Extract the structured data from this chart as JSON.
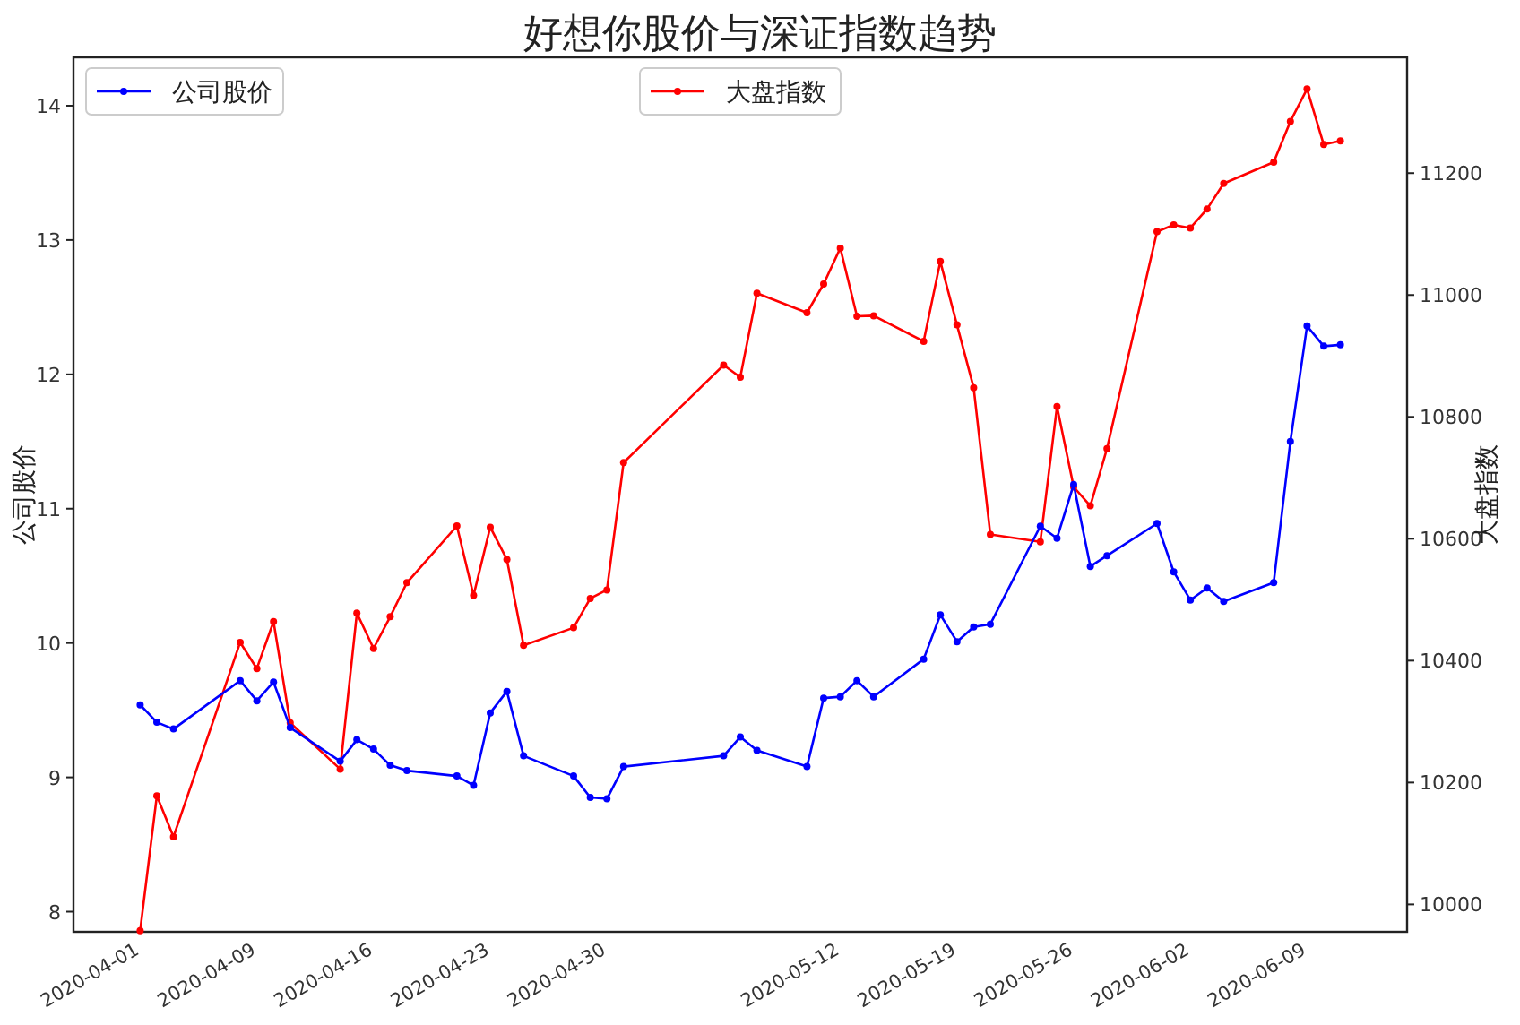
{
  "chart_data": {
    "type": "line",
    "title": "好想你股价与深证指数趋势",
    "ylabel": "公司股价",
    "y2label": "大盘指数",
    "x": [
      "2020-04-01",
      "2020-04-02",
      "2020-04-03",
      "2020-04-07",
      "2020-04-08",
      "2020-04-09",
      "2020-04-10",
      "2020-04-13",
      "2020-04-14",
      "2020-04-15",
      "2020-04-16",
      "2020-04-17",
      "2020-04-20",
      "2020-04-21",
      "2020-04-22",
      "2020-04-23",
      "2020-04-24",
      "2020-04-27",
      "2020-04-28",
      "2020-04-29",
      "2020-04-30",
      "2020-05-06",
      "2020-05-07",
      "2020-05-08",
      "2020-05-11",
      "2020-05-12",
      "2020-05-13",
      "2020-05-14",
      "2020-05-15",
      "2020-05-18",
      "2020-05-19",
      "2020-05-20",
      "2020-05-21",
      "2020-05-22",
      "2020-05-25",
      "2020-05-26",
      "2020-05-27",
      "2020-05-28",
      "2020-05-29",
      "2020-06-01",
      "2020-06-02",
      "2020-06-03",
      "2020-06-04",
      "2020-06-05",
      "2020-06-08",
      "2020-06-09",
      "2020-06-10",
      "2020-06-11",
      "2020-06-12"
    ],
    "series": [
      {
        "name": "公司股价",
        "color": "#0000ff",
        "values": [
          9.54,
          9.41,
          9.36,
          9.72,
          9.57,
          9.71,
          9.37,
          9.12,
          9.28,
          9.21,
          9.09,
          9.05,
          9.01,
          8.94,
          9.48,
          9.64,
          9.16,
          9.01,
          8.85,
          8.84,
          9.08,
          9.16,
          9.3,
          9.2,
          9.08,
          9.59,
          9.6,
          9.72,
          9.6,
          9.88,
          10.21,
          10.01,
          10.12,
          10.14,
          10.87,
          10.78,
          11.18,
          10.57,
          10.65,
          10.89,
          10.53,
          10.32,
          10.41,
          10.31,
          10.45,
          11.5,
          12.36,
          12.21,
          12.22
        ]
      },
      {
        "name": "大盘指数",
        "color": "#ff0000",
        "axis": "y2",
        "values": [
          9957,
          10178,
          10111,
          10430,
          10387,
          10464,
          10298,
          10222,
          10478,
          10420,
          10472,
          10528,
          10621,
          10507,
          10619,
          10566,
          10425,
          10454,
          10502,
          10516,
          10725,
          10885,
          10865,
          11003,
          10971,
          11018,
          11077,
          10965,
          10966,
          10924,
          11055,
          10951,
          10848,
          10607,
          10595,
          10817,
          10685,
          10654,
          10748,
          11104,
          11115,
          11110,
          11141,
          11183,
          11218,
          11285,
          11338,
          11247,
          11253
        ]
      }
    ],
    "xlim": [
      "2020-03-28",
      "2020-06-16"
    ],
    "xticks": [
      {
        "value": "2020-04-01",
        "label": "2020-04-01"
      },
      {
        "value": "2020-04-08",
        "label": "2020-04-09"
      },
      {
        "value": "2020-04-15",
        "label": "2020-04-16"
      },
      {
        "value": "2020-04-22",
        "label": "2020-04-23"
      },
      {
        "value": "2020-04-29",
        "label": "2020-04-30"
      },
      {
        "value": "2020-05-13",
        "label": "2020-05-12"
      },
      {
        "value": "2020-05-20",
        "label": "2020-05-19"
      },
      {
        "value": "2020-05-27",
        "label": "2020-05-26"
      },
      {
        "value": "2020-06-03",
        "label": "2020-06-02"
      },
      {
        "value": "2020-06-10",
        "label": "2020-06-09"
      }
    ],
    "ylim": [
      7.85,
      14.36
    ],
    "yticks": [
      8,
      9,
      10,
      11,
      12,
      13,
      14
    ],
    "y2lim": [
      9955,
      11390
    ],
    "y2ticks": [
      10000,
      10200,
      10400,
      10600,
      10800,
      11000,
      11200
    ],
    "legend": "top",
    "marker": "circle",
    "line_style": "solid",
    "grid": false
  }
}
